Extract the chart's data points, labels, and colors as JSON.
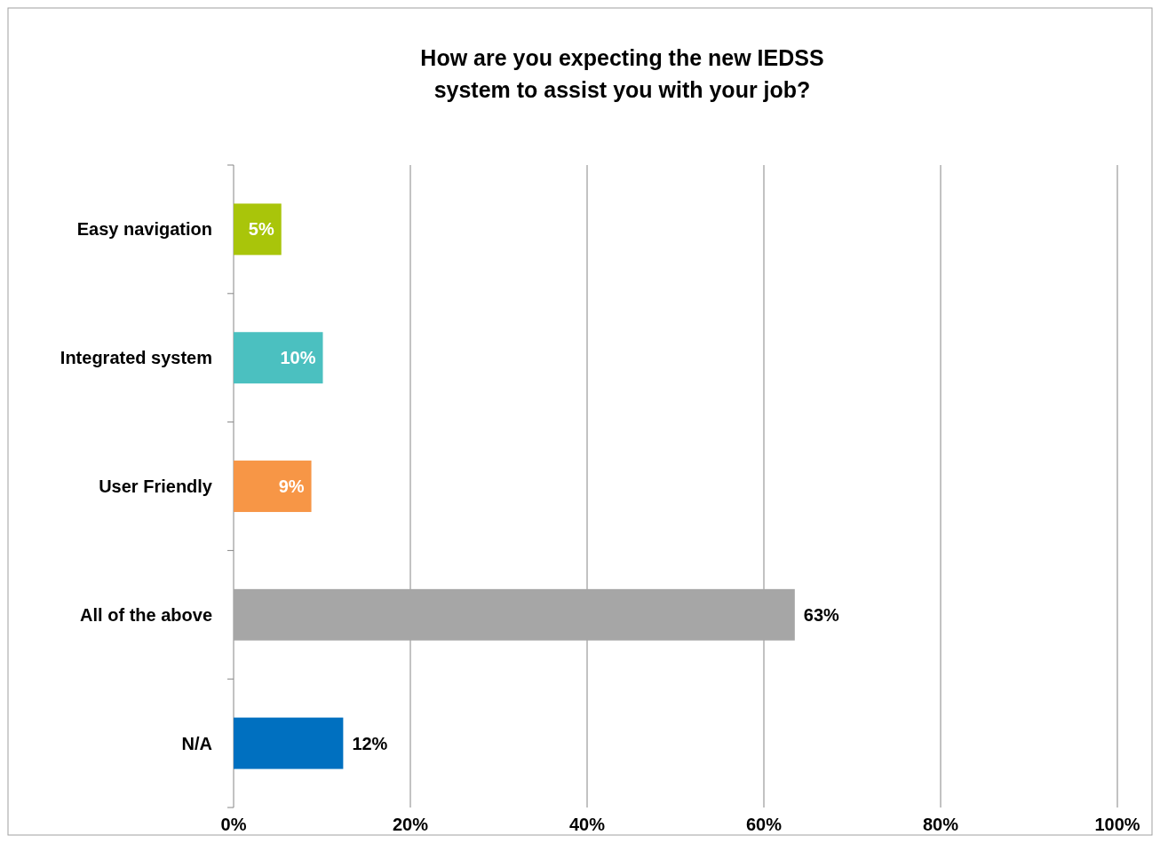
{
  "chart_data": {
    "type": "bar",
    "orientation": "horizontal",
    "title": "How are you expecting the new IEDSS system to assist you with your job?",
    "categories": [
      "Easy navigation",
      "Integrated system",
      "User Friendly",
      "All of the above",
      "N/A"
    ],
    "values": [
      5.4,
      10.1,
      8.8,
      63.5,
      12.4
    ],
    "value_labels": [
      "5%",
      "10%",
      "9%",
      "63%",
      "12%"
    ],
    "colors": [
      "#a9c50a",
      "#4bc0c0",
      "#f79646",
      "#a6a6a6",
      "#0070c0"
    ],
    "xlim": [
      0,
      100
    ],
    "xticks": [
      {
        "value": 0,
        "label": "0%"
      },
      {
        "value": 20,
        "label": "20%"
      },
      {
        "value": 40,
        "label": "40%"
      },
      {
        "value": 60,
        "label": "60%"
      },
      {
        "value": 80,
        "label": "80%"
      },
      {
        "value": 100,
        "label": "100%"
      }
    ],
    "grid": "x"
  }
}
